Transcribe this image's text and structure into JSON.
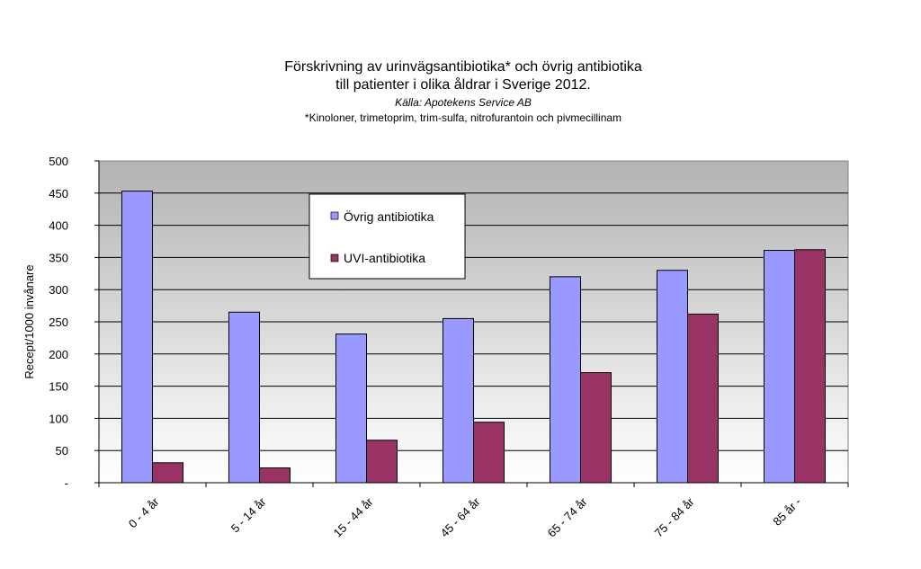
{
  "chart_data": {
    "type": "bar",
    "title_lines": [
      "Förskrivning av urinvägsantibiotika* och övrig antibiotika",
      "till patienter i olika åldrar i Sverige 2012."
    ],
    "source": "Källa: Apotekens Service AB",
    "footnote": "*Kinoloner, trimetoprim, trim-sulfa, nitrofurantoin och pivmecillinam",
    "ylabel": "Recept/1000 invånare",
    "xlabel": "",
    "ylim": [
      0,
      500
    ],
    "yticks": [
      0,
      50,
      100,
      150,
      200,
      250,
      300,
      350,
      400,
      450,
      500
    ],
    "ytick_labels": [
      "-",
      "50",
      "100",
      "150",
      "200",
      "250",
      "300",
      "350",
      "400",
      "450",
      "500"
    ],
    "categories": [
      "0 - 4 år",
      "5 - 14 år",
      "15 - 44 år",
      "45 - 64 år",
      "65 - 74 år",
      "75 - 84 år",
      "85 år -"
    ],
    "series": [
      {
        "name": "Övrig antibiotika",
        "color": "#9999ff",
        "values": [
          453,
          265,
          231,
          255,
          320,
          330,
          361
        ]
      },
      {
        "name": "UVI-antibiotika",
        "color": "#993366",
        "values": [
          31,
          23,
          66,
          94,
          171,
          262,
          362
        ]
      }
    ],
    "legend_position": "upper-center-left",
    "grid": true,
    "plot_background": "gradient gray to white"
  }
}
